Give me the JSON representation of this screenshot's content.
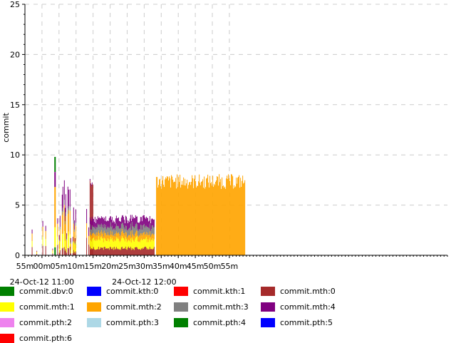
{
  "chart_data": {
    "type": "area",
    "title": "",
    "xlabel": "",
    "ylabel": "commit",
    "ylim": [
      0,
      25
    ],
    "yticks": [
      0,
      5,
      10,
      15,
      20,
      25
    ],
    "x_range": [
      "10:55",
      "12:59"
    ],
    "x_ticks": [
      {
        "t": "10:55",
        "label": "55m"
      },
      {
        "t": "11:00",
        "label": "00m"
      },
      {
        "t": "11:05",
        "label": "05m"
      },
      {
        "t": "11:10",
        "label": "10m"
      },
      {
        "t": "11:15",
        "label": "15m"
      },
      {
        "t": "11:20",
        "label": "20m"
      },
      {
        "t": "11:25",
        "label": "25m"
      },
      {
        "t": "11:30",
        "label": "30m"
      },
      {
        "t": "11:35",
        "label": "35m"
      },
      {
        "t": "11:40",
        "label": "40m"
      },
      {
        "t": "11:45",
        "label": "45m"
      },
      {
        "t": "11:50",
        "label": "50m"
      },
      {
        "t": "11:55",
        "label": "55m"
      }
    ],
    "date_labels": [
      {
        "t": "11:00",
        "label": "24-Oct-12 11:00"
      },
      {
        "t": "11:30",
        "label": "24-Oct-12 12:00"
      }
    ],
    "grid": true,
    "legend_position": "bottom",
    "series": [
      {
        "name": "commit.dbv:0",
        "color": "#008000"
      },
      {
        "name": "commit.kth:0",
        "color": "#0000ff"
      },
      {
        "name": "commit.kth:1",
        "color": "#ff0000"
      },
      {
        "name": "commit.mth:0",
        "color": "#a52a2a"
      },
      {
        "name": "commit.mth:1",
        "color": "#ffff00"
      },
      {
        "name": "commit.mth:2",
        "color": "#ffa500"
      },
      {
        "name": "commit.mth:3",
        "color": "#808080"
      },
      {
        "name": "commit.mth:4",
        "color": "#800080"
      },
      {
        "name": "commit.pth:2",
        "color": "#ee82ee"
      },
      {
        "name": "commit.pth:3",
        "color": "#add8e6"
      },
      {
        "name": "commit.pth:4",
        "color": "#008000"
      },
      {
        "name": "commit.pth:5",
        "color": "#0000ff"
      },
      {
        "name": "commit.pth:6",
        "color": "#ff0000"
      }
    ],
    "segments": [
      {
        "start": "10:57",
        "end": "11:05",
        "pattern": "sparse spikes",
        "peak_total": 5.5
      },
      {
        "start": "11:03",
        "end": "11:04",
        "pattern": "single spike",
        "peak_total": 9.8
      },
      {
        "start": "11:05",
        "end": "11:10",
        "pattern": "bursts",
        "levels": {
          "commit.mth:0": 0.8,
          "commit.mth:1": 1.5,
          "commit.mth:2": 2.5,
          "commit.mth:3": 0.5,
          "commit.mth:4": 2.0
        },
        "peak_total": 7.0
      },
      {
        "start": "11:13",
        "end": "11:14",
        "pattern": "spikes",
        "peak_total": 6.5
      },
      {
        "start": "11:14",
        "end": "11:15",
        "pattern": "solid",
        "levels": {
          "commit.mth:0": 7.0
        },
        "peak_total": 8.0
      },
      {
        "start": "11:14",
        "end": "11:33",
        "pattern": "steady stack",
        "levels": {
          "commit.mth:0": 0.7,
          "commit.mth:1": 0.9,
          "commit.mth:2": 0.6,
          "commit.mth:3": 0.7,
          "commit.mth:4": 0.8
        },
        "peak_total": 4.0
      },
      {
        "start": "11:33.5",
        "end": "11:59.5",
        "pattern": "steady",
        "levels": {
          "commit.mth:2": 7.5
        },
        "peak_total": 8.6
      }
    ]
  }
}
